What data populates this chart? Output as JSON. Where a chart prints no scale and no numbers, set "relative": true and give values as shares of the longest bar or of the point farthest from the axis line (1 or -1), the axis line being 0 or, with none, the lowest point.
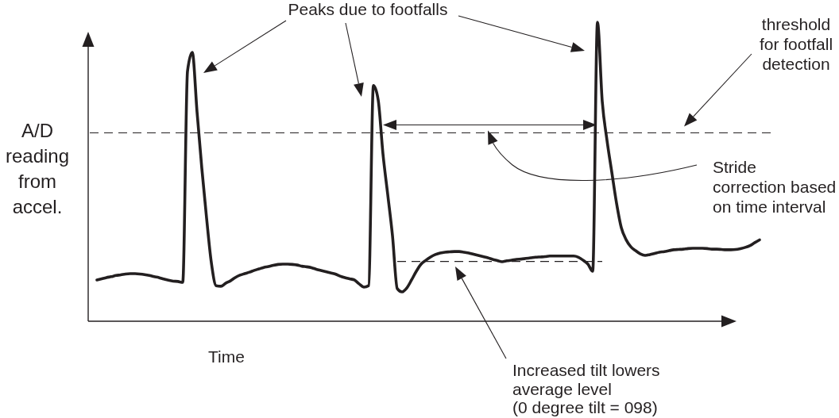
{
  "chart_data": {
    "type": "line",
    "xlabel": "Time",
    "ylabel": "A/D reading from accel.",
    "relative": true,
    "categories": [
      null,
      null,
      null,
      null,
      null,
      null,
      null,
      null,
      null,
      null,
      null,
      null,
      null,
      null,
      null,
      null,
      null,
      null,
      null,
      null,
      null,
      null,
      null,
      null,
      null,
      null,
      null,
      null,
      null,
      null,
      null,
      null,
      null,
      null,
      null,
      null,
      null,
      null,
      null,
      null,
      null,
      null,
      null,
      null,
      null,
      null,
      null,
      null,
      null,
      null,
      null,
      null,
      null,
      null,
      null,
      null,
      null,
      null,
      null,
      null,
      null,
      null,
      null,
      null,
      null,
      null,
      null,
      null,
      null,
      null,
      null,
      null,
      null,
      null,
      null,
      null,
      null,
      null,
      null,
      null,
      null,
      null,
      null,
      null,
      null,
      null,
      null,
      null,
      null,
      null,
      null,
      null,
      null,
      null,
      null,
      null,
      null,
      null,
      null,
      null,
      null,
      null,
      null,
      null,
      null,
      null,
      null,
      null,
      null,
      null,
      null,
      null,
      null,
      null,
      null,
      null,
      null,
      null,
      null,
      null,
      null,
      null,
      null,
      null,
      null,
      null,
      null,
      null,
      null,
      null,
      null,
      null,
      null,
      null,
      null,
      null,
      null,
      null,
      null,
      null
    ],
    "series": [
      {
        "color": "#231f20",
        "values": [
          0.138,
          0.142,
          0.146,
          0.149,
          0.153,
          0.155,
          0.158,
          0.159,
          0.159,
          0.158,
          0.156,
          0.153,
          0.149,
          0.146,
          0.141,
          0.137,
          0.134,
          0.133,
          0.13,
          0.836,
          0.899,
          0.7,
          0.512,
          0.345,
          0.196,
          0.119,
          0.117,
          0.127,
          0.135,
          0.146,
          0.154,
          0.159,
          0.164,
          0.17,
          0.175,
          0.18,
          0.183,
          0.187,
          0.19,
          0.191,
          0.191,
          0.19,
          0.188,
          0.184,
          0.182,
          0.179,
          0.174,
          0.17,
          0.166,
          0.162,
          0.158,
          0.151,
          0.146,
          0.142,
          0.138,
          0.125,
          0.114,
          0.119,
          0.788,
          0.74,
          0.56,
          0.424,
          0.286,
          0.109,
          0.098,
          0.111,
          0.138,
          0.167,
          0.191,
          0.204,
          0.215,
          0.223,
          0.228,
          0.231,
          0.232,
          0.233,
          0.233,
          0.231,
          0.228,
          0.224,
          0.22,
          0.216,
          0.212,
          0.207,
          0.203,
          0.199,
          0.202,
          0.204,
          0.207,
          0.208,
          0.21,
          0.212,
          0.214,
          0.215,
          0.216,
          0.218,
          0.218,
          0.218,
          0.218,
          0.218,
          0.218,
          0.214,
          0.204,
          0.191,
          0.167,
          1,
          0.735,
          0.605,
          0.499,
          0.395,
          0.313,
          0.273,
          0.249,
          0.236,
          0.225,
          0.22,
          0.223,
          0.227,
          0.231,
          0.233,
          0.236,
          0.239,
          0.24,
          0.241,
          0.243,
          0.244,
          0.244,
          0.244,
          0.243,
          0.241,
          0.241,
          0.24,
          0.239,
          0.239,
          0.24,
          0.243,
          0.247,
          0.253,
          0.263,
          0.272
        ]
      },
      {
        "color": "#231f20",
        "line_style": "dashed",
        "values": [
          null,
          null,
          null,
          null,
          null,
          null,
          null,
          null,
          null,
          null,
          null,
          null,
          null,
          null,
          null,
          null,
          null,
          null,
          null,
          null,
          null,
          null,
          null,
          null,
          null,
          null,
          null,
          null,
          null,
          null,
          null,
          null,
          null,
          null,
          null,
          null,
          null,
          null,
          null,
          null,
          null,
          null,
          null,
          null,
          null,
          null,
          null,
          null,
          null,
          null,
          null,
          null,
          null,
          null,
          null,
          null,
          null,
          null,
          null,
          null,
          null,
          null,
          null,
          0.2,
          0.2,
          0.2,
          0.2,
          0.2,
          0.2,
          0.2,
          0.2,
          0.2,
          0.2,
          0.2,
          0.2,
          0.2,
          0.2,
          0.2,
          0.2,
          0.2,
          0.2,
          0.2,
          0.2,
          0.2,
          0.2,
          0.2,
          0.2,
          0.2,
          0.2,
          0.2,
          0.2,
          0.2,
          0.2,
          0.2,
          0.2,
          0.2,
          0.2,
          0.2,
          0.2,
          0.2,
          0.2,
          0.2,
          0.2,
          0.2,
          0.2,
          0.2,
          0.2,
          null,
          null,
          null,
          null,
          null,
          null,
          null,
          null,
          null,
          null,
          null,
          null,
          null,
          null,
          null,
          null,
          null,
          null,
          null,
          null,
          null,
          null,
          null,
          null,
          null,
          null,
          null,
          null,
          null,
          null,
          null,
          null,
          null
        ]
      }
    ],
    "ref_lines": [
      {
        "axis": "y",
        "value": 0.63,
        "label": "threshold for footfall detection",
        "line_style": "dashed",
        "color": "#231f20"
      }
    ],
    "annotations": [
      "Peaks due to footfalls",
      "Stride correction based on time interval",
      "Increased tilt lowers average level (0 degree tilt = 098)"
    ]
  }
}
